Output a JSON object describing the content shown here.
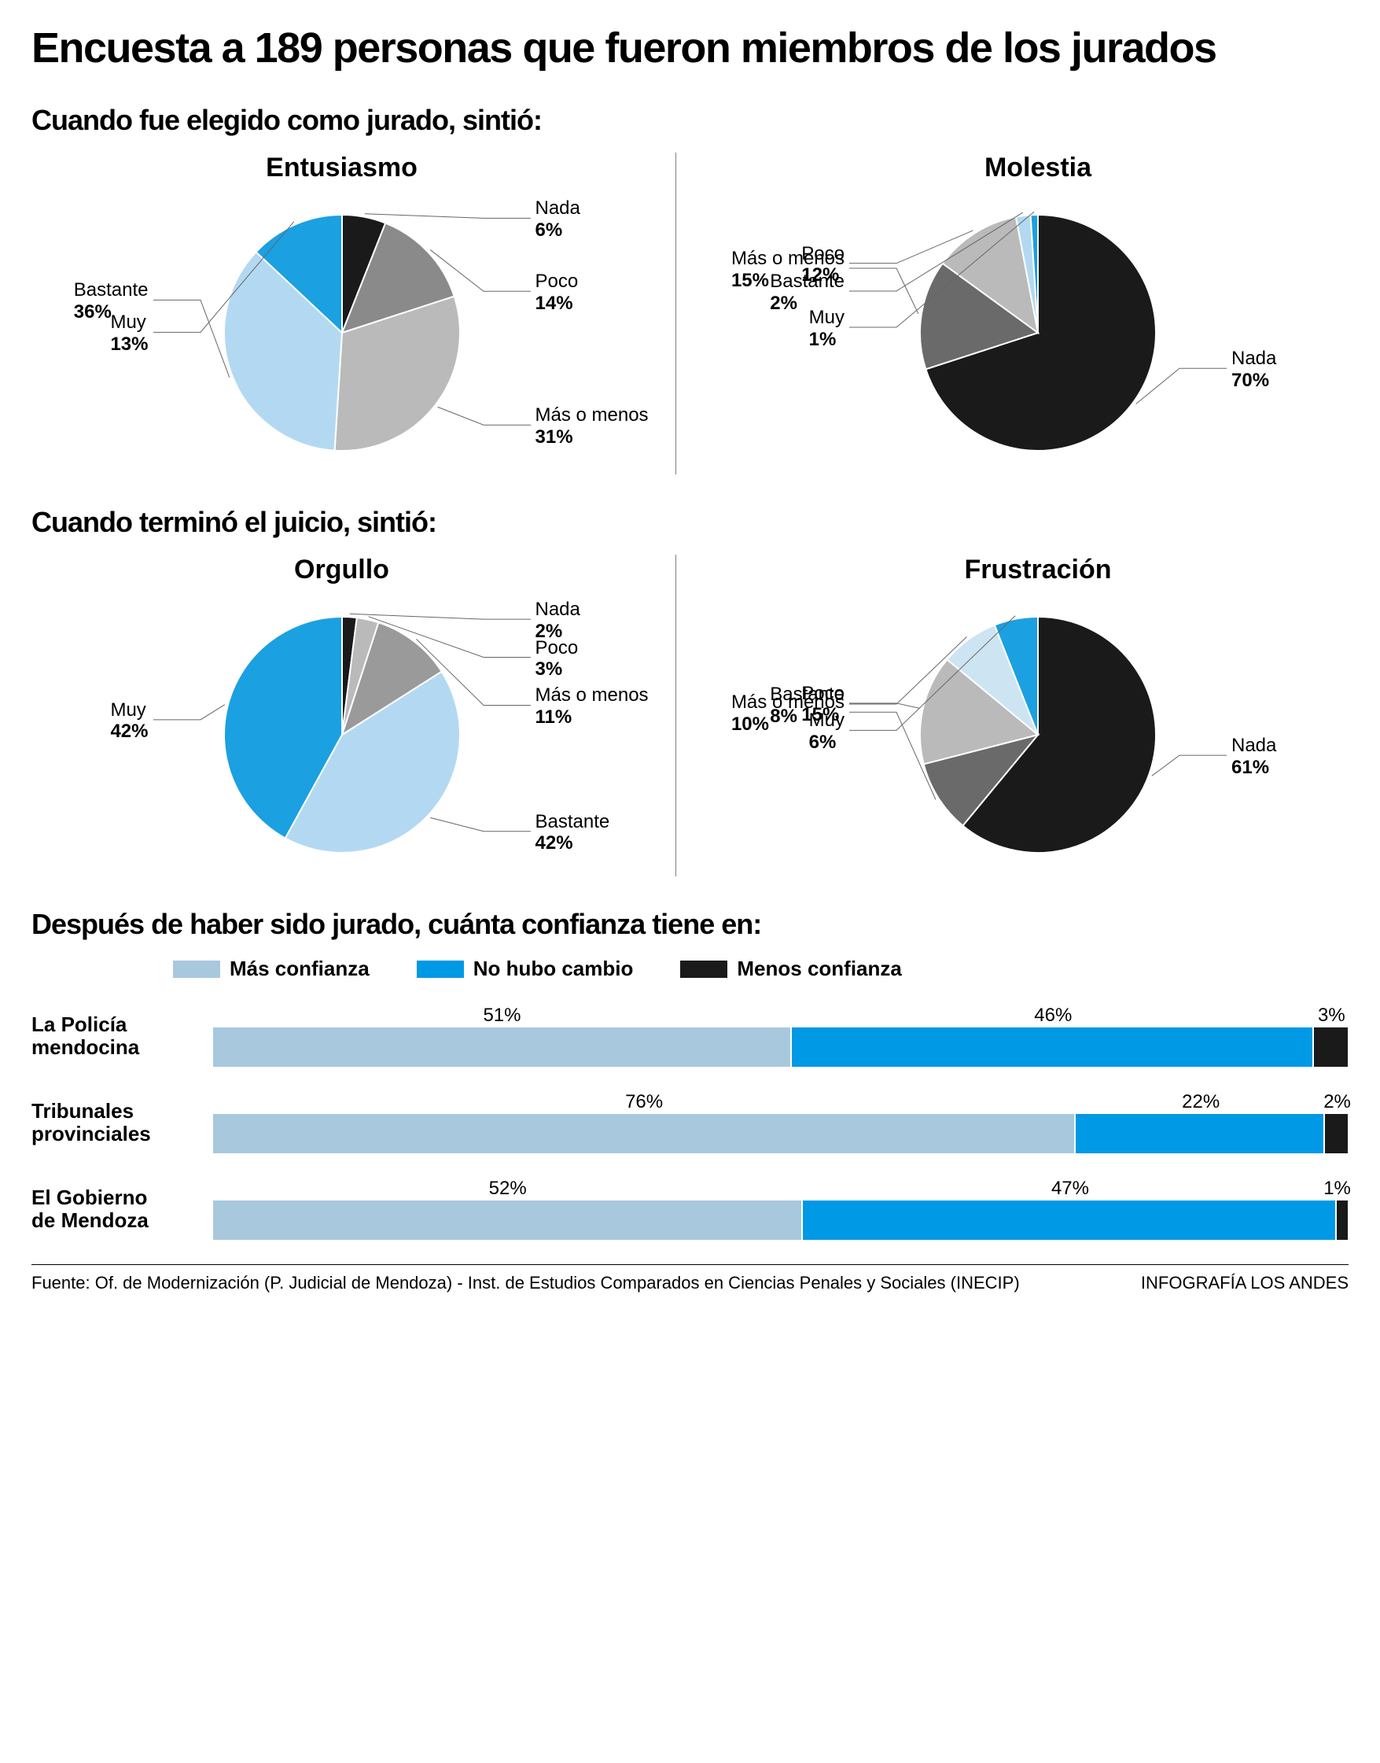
{
  "title": "Encuesta a 189 personas que fueron miembros de los jurados",
  "section1_title": "Cuando fue elegido como jurado, sintió:",
  "section2_title": "Cuando terminó el juicio, sintió:",
  "section3_title": "Después de haber sido jurado, cuánta confianza tiene en:",
  "colors": {
    "muy": "#1ba0e1",
    "bastante": "#b3d9f2",
    "mas_o_menos": "#9a9a9a",
    "poco": "#c8c8c8",
    "nada": "#1a1a1a",
    "mas_confianza": "#a8c8dd",
    "no_cambio": "#0099e5",
    "menos_confianza": "#1a1a1a",
    "leader": "#666666",
    "bg": "#ffffff"
  },
  "pie_radius": 150,
  "pies": {
    "entusiasmo": {
      "title": "Entusiasmo",
      "slices": [
        {
          "key": "nada",
          "label": "Nada",
          "value": 6,
          "color": "#1a1a1a"
        },
        {
          "key": "poco",
          "label": "Poco",
          "value": 14,
          "color": "#8a8a8a"
        },
        {
          "key": "mas_o_menos",
          "label": "Más o menos",
          "value": 31,
          "color": "#bababa"
        },
        {
          "key": "bastante",
          "label": "Bastante",
          "value": 36,
          "color": "#b3d9f2"
        },
        {
          "key": "muy",
          "label": "Muy",
          "value": 13,
          "color": "#1ba0e1"
        }
      ]
    },
    "molestia": {
      "title": "Molestia",
      "slices": [
        {
          "key": "nada",
          "label": "Nada",
          "value": 70,
          "color": "#1a1a1a"
        },
        {
          "key": "mas_o_menos",
          "label": "Más o menos",
          "value": 15,
          "color": "#6a6a6a"
        },
        {
          "key": "poco",
          "label": "Poco",
          "value": 12,
          "color": "#bababa"
        },
        {
          "key": "bastante",
          "label": "Bastante",
          "value": 2,
          "color": "#b3d9f2"
        },
        {
          "key": "muy",
          "label": "Muy",
          "value": 1,
          "color": "#1ba0e1"
        }
      ]
    },
    "orgullo": {
      "title": "Orgullo",
      "slices": [
        {
          "key": "nada",
          "label": "Nada",
          "value": 2,
          "color": "#1a1a1a"
        },
        {
          "key": "poco",
          "label": "Poco",
          "value": 3,
          "color": "#bababa"
        },
        {
          "key": "mas_o_menos",
          "label": "Más o menos",
          "value": 11,
          "color": "#9a9a9a"
        },
        {
          "key": "bastante",
          "label": "Bastante",
          "value": 42,
          "color": "#b3d9f2"
        },
        {
          "key": "muy",
          "label": "Muy",
          "value": 42,
          "color": "#1ba0e1"
        }
      ]
    },
    "frustracion": {
      "title": "Frustración",
      "slices": [
        {
          "key": "nada",
          "label": "Nada",
          "value": 61,
          "color": "#1a1a1a"
        },
        {
          "key": "mas_o_menos",
          "label": "Más o menos",
          "value": 10,
          "color": "#6a6a6a"
        },
        {
          "key": "poco",
          "label": "Poco",
          "value": 15,
          "color": "#bababa"
        },
        {
          "key": "bastante",
          "label": "Bastante",
          "value": 8,
          "color": "#cde4f3"
        },
        {
          "key": "muy",
          "label": "Muy",
          "value": 6,
          "color": "#1ba0e1"
        }
      ]
    }
  },
  "stack_legend": [
    {
      "label": "Más confianza",
      "color": "#a8c8dd"
    },
    {
      "label": "No hubo cambio",
      "color": "#0099e5"
    },
    {
      "label": "Menos confianza",
      "color": "#1a1a1a"
    }
  ],
  "stack_rows": [
    {
      "label_l1": "La Policía",
      "label_l2": "mendocina",
      "segments": [
        {
          "value": 51,
          "color": "#a8c8dd"
        },
        {
          "value": 46,
          "color": "#0099e5"
        },
        {
          "value": 3,
          "color": "#1a1a1a"
        }
      ]
    },
    {
      "label_l1": "Tribunales",
      "label_l2": "provinciales",
      "segments": [
        {
          "value": 76,
          "color": "#a8c8dd"
        },
        {
          "value": 22,
          "color": "#0099e5"
        },
        {
          "value": 2,
          "color": "#1a1a1a"
        }
      ]
    },
    {
      "label_l1": "El Gobierno",
      "label_l2": "de Mendoza",
      "segments": [
        {
          "value": 52,
          "color": "#a8c8dd"
        },
        {
          "value": 47,
          "color": "#0099e5"
        },
        {
          "value": 1,
          "color": "#1a1a1a"
        }
      ]
    }
  ],
  "footer_left": "Fuente: Of. de Modernización (P. Judicial de Mendoza) - Inst. de Estudios Comparados en Ciencias Penales y Sociales (INECIP)",
  "footer_right": "INFOGRAFÍA LOS ANDES"
}
